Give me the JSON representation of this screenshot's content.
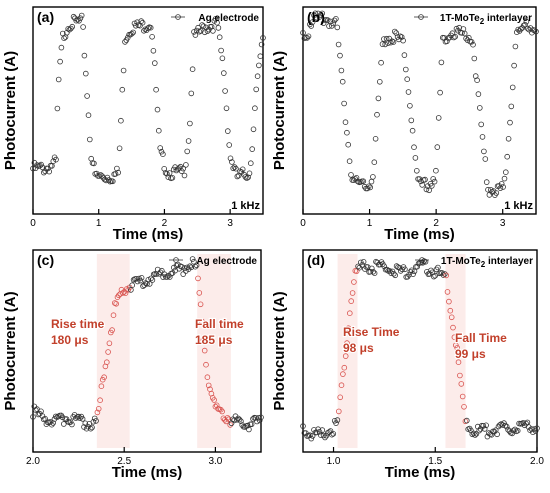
{
  "chart_data": [
    {
      "type": "line",
      "panel_label": "(a)",
      "legend": "Ag electrode",
      "xlabel": "Time (ms)",
      "ylabel": "Photocurrent (A)",
      "xlim": [
        0,
        3.5
      ],
      "ylim": [
        0,
        1
      ],
      "xticks": [
        "0",
        "1",
        "2",
        "3"
      ],
      "xtick_values": [
        0,
        1,
        2,
        3
      ],
      "annotation": "1 kHz",
      "series": [
        {
          "points": [
            [
              0,
              0.22
            ],
            [
              0.2,
              0.22
            ],
            [
              0.35,
              0.25
            ],
            [
              0.38,
              0.6
            ],
            [
              0.45,
              0.85
            ],
            [
              0.55,
              0.92
            ],
            [
              0.75,
              0.93
            ],
            [
              0.8,
              0.7
            ],
            [
              0.88,
              0.3
            ],
            [
              0.95,
              0.18
            ],
            [
              1.2,
              0.18
            ],
            [
              1.3,
              0.2
            ],
            [
              1.4,
              0.85
            ],
            [
              1.5,
              0.9
            ],
            [
              1.8,
              0.92
            ],
            [
              1.85,
              0.72
            ],
            [
              1.93,
              0.3
            ],
            [
              2.05,
              0.2
            ],
            [
              2.3,
              0.2
            ],
            [
              2.38,
              0.4
            ],
            [
              2.45,
              0.85
            ],
            [
              2.6,
              0.9
            ],
            [
              2.8,
              0.92
            ],
            [
              2.9,
              0.7
            ],
            [
              3.0,
              0.28
            ],
            [
              3.1,
              0.18
            ],
            [
              3.3,
              0.2
            ],
            [
              3.4,
              0.6
            ],
            [
              3.5,
              0.85
            ]
          ]
        }
      ]
    },
    {
      "type": "line",
      "panel_label": "(b)",
      "legend": "1T-MoTe",
      "legend_sub": "2",
      "legend_tail": " interlayer",
      "xlabel": "Time (ms)",
      "ylabel": "Photocurrent (A)",
      "xlim": [
        0,
        3.5
      ],
      "ylim": [
        0,
        1
      ],
      "xticks": [
        "0",
        "1",
        "2",
        "3"
      ],
      "xtick_values": [
        0,
        1,
        2,
        3
      ],
      "annotation": "1 kHz",
      "series": [
        {
          "points": [
            [
              0,
              0.86
            ],
            [
              0.08,
              0.88
            ],
            [
              0.1,
              0.93
            ],
            [
              0.15,
              0.94
            ],
            [
              0.35,
              0.94
            ],
            [
              0.5,
              0.92
            ],
            [
              0.6,
              0.6
            ],
            [
              0.72,
              0.2
            ],
            [
              0.8,
              0.15
            ],
            [
              1.0,
              0.15
            ],
            [
              1.05,
              0.18
            ],
            [
              1.2,
              0.84
            ],
            [
              1.35,
              0.86
            ],
            [
              1.5,
              0.83
            ],
            [
              1.62,
              0.5
            ],
            [
              1.72,
              0.14
            ],
            [
              1.9,
              0.14
            ],
            [
              2.0,
              0.2
            ],
            [
              2.1,
              0.84
            ],
            [
              2.25,
              0.88
            ],
            [
              2.4,
              0.87
            ],
            [
              2.55,
              0.85
            ],
            [
              2.65,
              0.5
            ],
            [
              2.78,
              0.12
            ],
            [
              3.0,
              0.12
            ],
            [
              3.05,
              0.2
            ],
            [
              3.2,
              0.86
            ],
            [
              3.35,
              0.9
            ],
            [
              3.5,
              0.9
            ]
          ]
        }
      ]
    },
    {
      "type": "line",
      "panel_label": "(c)",
      "legend": "Ag electrode",
      "xlabel": "Time (ms)",
      "ylabel": "Photocurrent (A)",
      "xlim": [
        2.0,
        3.25
      ],
      "ylim": [
        0,
        1
      ],
      "xticks": [
        "2.0",
        "2.5",
        "3.0"
      ],
      "xtick_values": [
        2.0,
        2.5,
        3.0
      ],
      "rise_label": "Rise time",
      "rise_value": "180 μs",
      "fall_label": "Fall time",
      "fall_value": "185 μs",
      "rise_range": [
        2.35,
        2.53
      ],
      "fall_range": [
        2.9,
        3.085
      ],
      "series": [
        {
          "points": [
            [
              2.0,
              0.2
            ],
            [
              2.1,
              0.15
            ],
            [
              2.2,
              0.17
            ],
            [
              2.3,
              0.14
            ],
            [
              2.35,
              0.15
            ],
            [
              2.4,
              0.45
            ],
            [
              2.45,
              0.72
            ],
            [
              2.5,
              0.8
            ],
            [
              2.53,
              0.82
            ],
            [
              2.6,
              0.85
            ],
            [
              2.7,
              0.88
            ],
            [
              2.8,
              0.9
            ],
            [
              2.88,
              0.93
            ],
            [
              2.9,
              0.9
            ],
            [
              2.93,
              0.6
            ],
            [
              2.96,
              0.35
            ],
            [
              3.0,
              0.22
            ],
            [
              3.05,
              0.18
            ],
            [
              3.085,
              0.16
            ],
            [
              3.15,
              0.13
            ],
            [
              3.25,
              0.15
            ]
          ]
        }
      ]
    },
    {
      "type": "line",
      "panel_label": "(d)",
      "legend": "1T-MoTe",
      "legend_sub": "2",
      "legend_tail": " interlayer",
      "xlabel": "Time (ms)",
      "ylabel": "Photocurrent (A)",
      "xlim": [
        0.85,
        2.0
      ],
      "ylim": [
        0,
        1
      ],
      "xticks": [
        "1.0",
        "1.5",
        "2.0"
      ],
      "xtick_values": [
        1.0,
        1.5,
        2.0
      ],
      "rise_label": "Rise Time",
      "rise_value": "98 μs",
      "fall_label": "Fall Time",
      "fall_value": "99 μs",
      "rise_range": [
        1.02,
        1.118
      ],
      "fall_range": [
        1.55,
        1.649
      ],
      "series": [
        {
          "points": [
            [
              0.85,
              0.1
            ],
            [
              0.9,
              0.09
            ],
            [
              0.95,
              0.08
            ],
            [
              1.0,
              0.12
            ],
            [
              1.02,
              0.14
            ],
            [
              1.05,
              0.4
            ],
            [
              1.08,
              0.7
            ],
            [
              1.1,
              0.85
            ],
            [
              1.118,
              0.9
            ],
            [
              1.15,
              0.92
            ],
            [
              1.25,
              0.91
            ],
            [
              1.35,
              0.89
            ],
            [
              1.45,
              0.92
            ],
            [
              1.5,
              0.89
            ],
            [
              1.55,
              0.87
            ],
            [
              1.6,
              0.55
            ],
            [
              1.63,
              0.3
            ],
            [
              1.649,
              0.14
            ],
            [
              1.7,
              0.1
            ],
            [
              1.8,
              0.11
            ],
            [
              1.9,
              0.12
            ],
            [
              2.0,
              0.13
            ]
          ]
        }
      ]
    }
  ]
}
